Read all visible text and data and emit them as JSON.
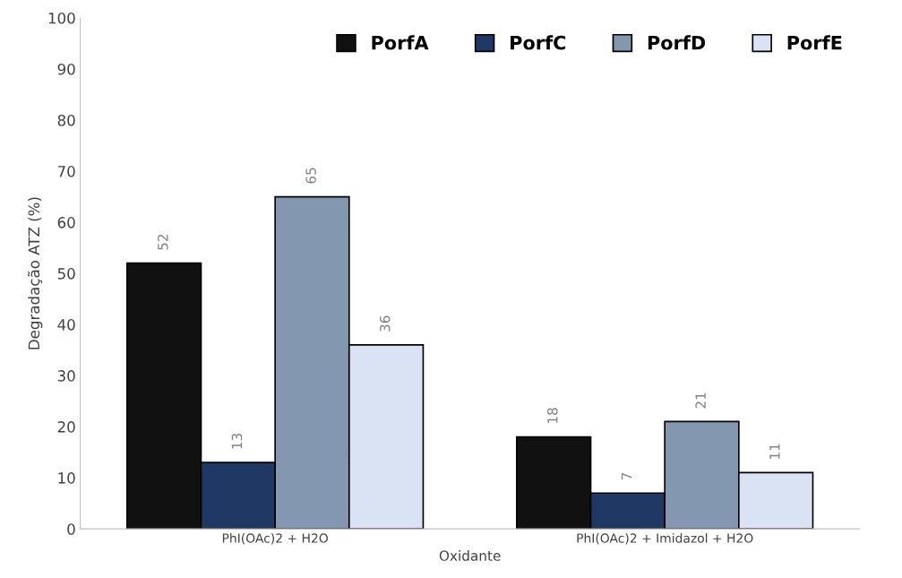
{
  "chart_data": {
    "type": "bar",
    "xlabel": "Oxidante",
    "ylabel": "Degradação ATZ (%)",
    "categories": [
      "PhI(OAc)2 + H2O",
      "PhI(OAc)2 + Imidazol + H2O"
    ],
    "series": [
      {
        "name": "PorfA",
        "color": "#111111",
        "values": [
          52,
          18
        ]
      },
      {
        "name": "PorfC",
        "color": "#203864",
        "values": [
          13,
          7
        ]
      },
      {
        "name": "PorfD",
        "color": "#8497b0",
        "values": [
          65,
          21
        ]
      },
      {
        "name": "PorfE",
        "color": "#dae3f3",
        "values": [
          36,
          11
        ]
      }
    ],
    "ylim": [
      0,
      100
    ],
    "yticks": [
      0,
      10,
      20,
      30,
      40,
      50,
      60,
      70,
      80,
      90,
      100
    ],
    "data_labels": true,
    "legend": "top right",
    "grid": false
  }
}
